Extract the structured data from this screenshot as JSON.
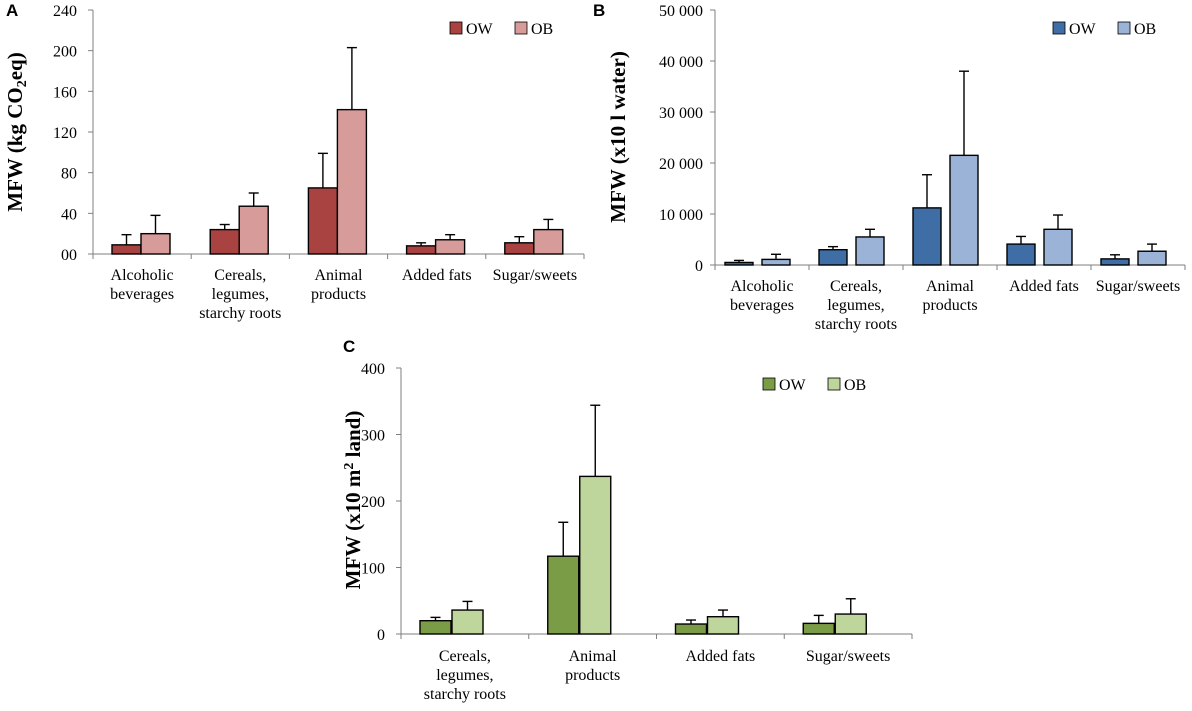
{
  "chart_data": [
    {
      "panel": "A",
      "type": "bar",
      "ylabel": "MFW (kg CO2eq)",
      "ylabel_parts": [
        "MFW (kg CO",
        "2",
        "eq)"
      ],
      "ylim": [
        0,
        240
      ],
      "yticks": [
        0,
        40,
        80,
        120,
        160,
        200,
        240
      ],
      "ytick_labels": [
        "00",
        "40",
        "80",
        "120",
        "160",
        "200",
        "240"
      ],
      "categories": [
        [
          "Alcoholic",
          "beverages"
        ],
        [
          "Cereals,",
          "legumes,",
          "starchy roots"
        ],
        [
          "Animal",
          "products"
        ],
        [
          "Added fats"
        ],
        [
          "Sugar/sweets"
        ]
      ],
      "series": [
        {
          "name": "OW",
          "color": "#a94341",
          "values": [
            9,
            24,
            65,
            8,
            11
          ],
          "errors": [
            10,
            5,
            34,
            3,
            6
          ]
        },
        {
          "name": "OB",
          "color": "#d79b9a",
          "values": [
            20,
            47,
            142,
            14,
            24
          ],
          "errors": [
            18,
            13,
            61,
            5,
            10
          ]
        }
      ],
      "legend": "top-right"
    },
    {
      "panel": "B",
      "type": "bar",
      "ylabel": "MFW (x10 l water)",
      "ylabel_parts": [
        "MFW (x10 l water)"
      ],
      "ylim": [
        0,
        50000
      ],
      "yticks": [
        0,
        10000,
        20000,
        30000,
        40000,
        50000
      ],
      "ytick_labels": [
        "0",
        "10 000",
        "20 000",
        "30 000",
        "40 000",
        "50 000"
      ],
      "categories": [
        [
          "Alcoholic",
          "beverages"
        ],
        [
          "Cereals,",
          "legumes,",
          "starchy roots"
        ],
        [
          "Animal",
          "products"
        ],
        [
          "Added fats"
        ],
        [
          "Sugar/sweets"
        ]
      ],
      "series": [
        {
          "name": "OW",
          "color": "#3f6ea6",
          "values": [
            500,
            3000,
            11200,
            4100,
            1200
          ],
          "errors": [
            400,
            600,
            6500,
            1500,
            800
          ]
        },
        {
          "name": "OB",
          "color": "#9cb3d8",
          "values": [
            1100,
            5500,
            21500,
            7000,
            2700
          ],
          "errors": [
            1000,
            1500,
            16500,
            2800,
            1400
          ]
        }
      ],
      "legend": "top-right"
    },
    {
      "panel": "C",
      "type": "bar",
      "ylabel": "MFW (x10  m2 land)",
      "ylabel_parts": [
        "MFW (x10  m",
        "2",
        " land)"
      ],
      "ylim": [
        0,
        400
      ],
      "yticks": [
        0,
        100,
        200,
        300,
        400
      ],
      "ytick_labels": [
        "0",
        "100",
        "200",
        "300",
        "400"
      ],
      "categories": [
        [
          "Cereals,",
          "legumes,",
          "starchy roots"
        ],
        [
          "Animal",
          "products"
        ],
        [
          "Added fats"
        ],
        [
          "Sugar/sweets"
        ]
      ],
      "series": [
        {
          "name": "OW",
          "color": "#7b9c46",
          "values": [
            20,
            117,
            15,
            16
          ],
          "errors": [
            5,
            51,
            6,
            12
          ]
        },
        {
          "name": "OB",
          "color": "#bed59b",
          "values": [
            36,
            237,
            26,
            30
          ],
          "errors": [
            13,
            107,
            10,
            23
          ]
        }
      ],
      "legend": "top-right"
    }
  ]
}
